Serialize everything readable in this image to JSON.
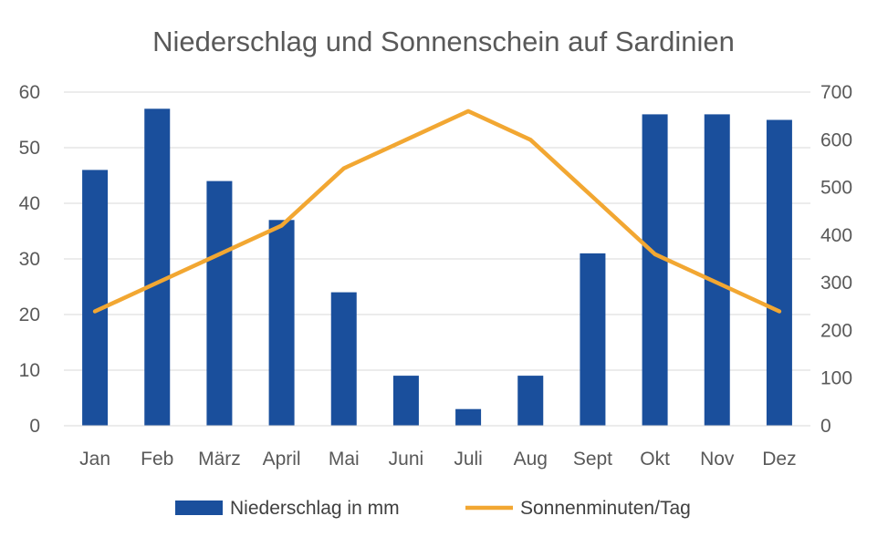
{
  "chart_data": {
    "type": "bar",
    "title": "Niederschlag und Sonnenschein auf Sardinien",
    "categories": [
      "Jan",
      "Feb",
      "März",
      "April",
      "Mai",
      "Juni",
      "Juli",
      "Aug",
      "Sept",
      "Okt",
      "Nov",
      "Dez"
    ],
    "series": [
      {
        "name": "Niederschlag in mm",
        "type": "bar",
        "axis": "left",
        "color": "#1a4f9c",
        "values": [
          46,
          57,
          44,
          37,
          24,
          9,
          3,
          9,
          31,
          56,
          56,
          55
        ]
      },
      {
        "name": "Sonnenminuten/Tag",
        "type": "line",
        "axis": "right",
        "color": "#f2a732",
        "values": [
          240,
          300,
          360,
          420,
          540,
          600,
          660,
          600,
          480,
          360,
          300,
          240
        ]
      }
    ],
    "y_left": {
      "min": 0,
      "max": 60,
      "ticks": [
        0,
        10,
        20,
        30,
        40,
        50,
        60
      ]
    },
    "y_right": {
      "min": 0,
      "max": 700,
      "ticks": [
        0,
        100,
        200,
        300,
        400,
        500,
        600,
        700
      ]
    },
    "grid": true,
    "legend_position": "bottom"
  }
}
